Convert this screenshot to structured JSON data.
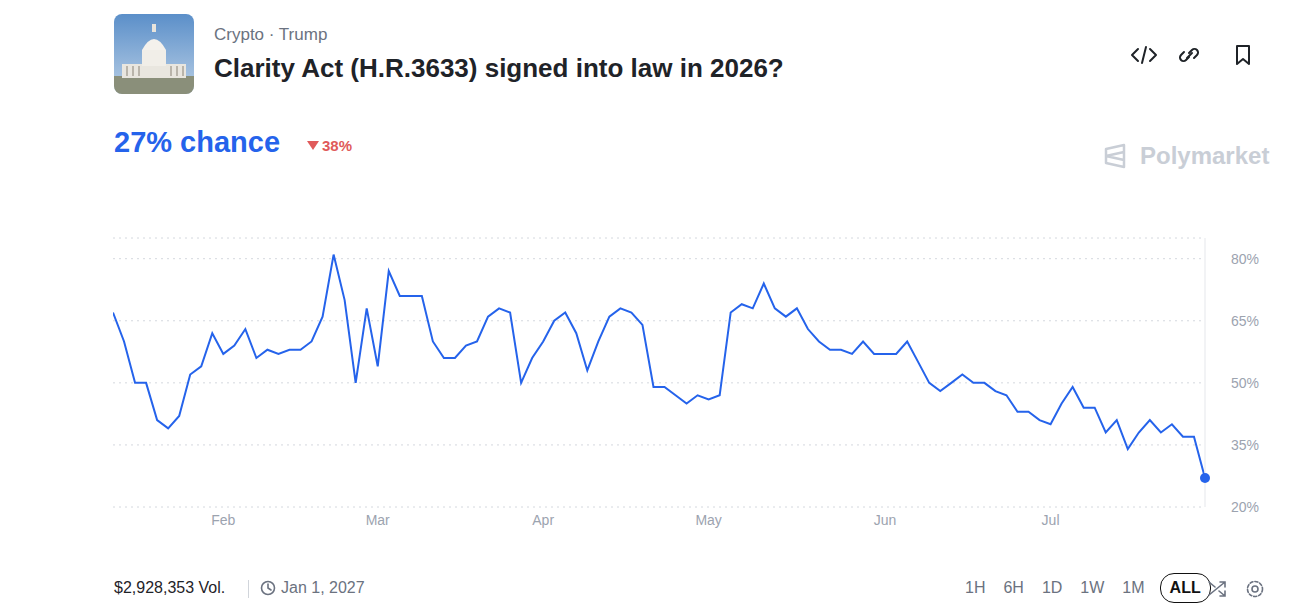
{
  "chart_data": {
    "type": "line",
    "title": "Clarity Act (H.R.3633) signed into law in 2026?",
    "color": "#2563eb",
    "grid": true,
    "categories": [
      null,
      null,
      null,
      null,
      null,
      null,
      null,
      null,
      null,
      null,
      "Feb",
      null,
      null,
      null,
      null,
      null,
      null,
      null,
      null,
      null,
      null,
      null,
      null,
      null,
      "Mar",
      null,
      null,
      null,
      null,
      null,
      null,
      null,
      null,
      null,
      null,
      null,
      null,
      null,
      null,
      "Apr",
      null,
      null,
      null,
      null,
      null,
      null,
      null,
      null,
      null,
      null,
      null,
      null,
      null,
      null,
      "May",
      null,
      null,
      null,
      null,
      null,
      null,
      null,
      null,
      null,
      null,
      null,
      null,
      null,
      null,
      null,
      "Jun",
      null,
      null,
      null,
      null,
      null,
      null,
      null,
      null,
      null,
      null,
      null,
      null,
      null,
      null,
      "Jul",
      null,
      null,
      null,
      null,
      null,
      null,
      null,
      null,
      null,
      null,
      null,
      null,
      null,
      null
    ],
    "values": [
      67,
      60,
      50,
      50,
      41,
      39,
      42,
      52,
      54,
      62,
      57,
      59,
      63,
      56,
      58,
      57,
      58,
      58,
      60,
      66,
      81,
      70,
      50,
      68,
      54,
      77,
      71,
      71,
      71,
      60,
      56,
      56,
      59,
      60,
      66,
      68,
      67,
      50,
      56,
      60,
      65,
      67,
      62,
      53,
      60,
      66,
      68,
      67,
      64,
      49,
      49,
      47,
      45,
      47,
      46,
      47,
      67,
      69,
      68,
      74,
      68,
      66,
      68,
      63,
      60,
      58,
      58,
      57,
      60,
      57,
      57,
      57,
      60,
      55,
      50,
      48,
      50,
      52,
      50,
      50,
      48,
      47,
      43,
      43,
      41,
      40,
      45,
      49,
      44,
      44,
      38,
      41,
      34,
      38,
      41,
      38,
      40,
      37,
      37,
      27
    ],
    "ylim": [
      20,
      85
    ],
    "yticks": [
      {
        "value": 20,
        "label": "20%"
      },
      {
        "value": 35,
        "label": "35%"
      },
      {
        "value": 50,
        "label": "50%"
      },
      {
        "value": 65,
        "label": "65%"
      },
      {
        "value": 80,
        "label": "80%"
      }
    ]
  },
  "header": {
    "kicker": "Crypto · Trump",
    "chance_label": "27% chance",
    "change_label": "38%",
    "watermark": "Polymarket"
  },
  "footer": {
    "volume": "$2,928,353 Vol.",
    "end_date": "Jan 1, 2027",
    "ranges": [
      "1H",
      "6H",
      "1D",
      "1W",
      "1M",
      "ALL"
    ],
    "active_range": "ALL"
  }
}
